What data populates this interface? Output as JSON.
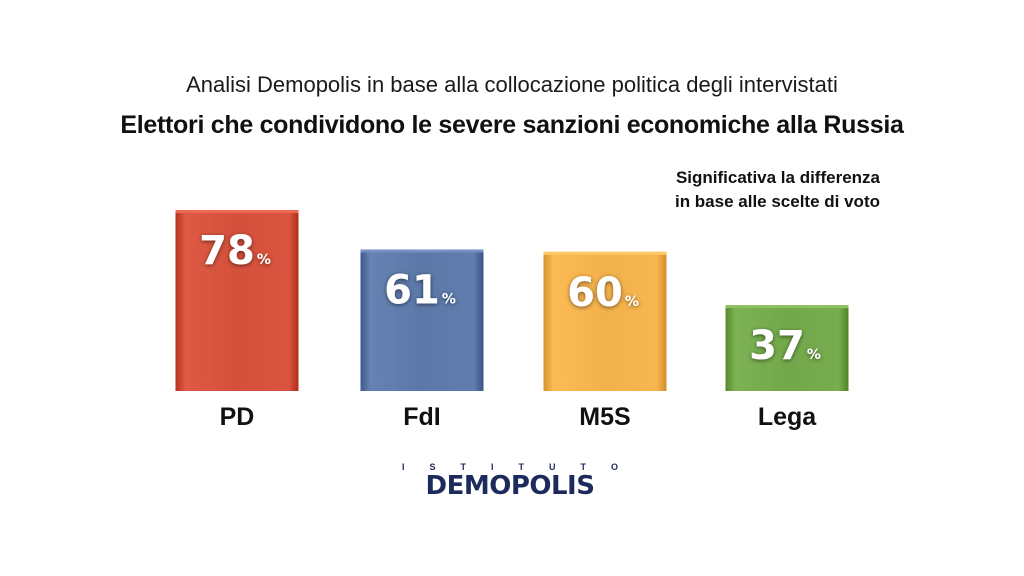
{
  "header": {
    "subtitle": "Analisi Demopolis in base alla collocazione politica degli intervistati",
    "title": "Elettori che condividono le severe sanzioni economiche alla Russia"
  },
  "note": {
    "line1": "Significativa la differenza",
    "line2": "in base alle scelte di voto"
  },
  "chart_data": {
    "type": "bar",
    "categories": [
      "PD",
      "FdI",
      "M5S",
      "Lega"
    ],
    "values": [
      78,
      61,
      60,
      37
    ],
    "unit": "%",
    "colors": [
      "#d4503a",
      "#5b78a8",
      "#f2b14a",
      "#72a84a"
    ],
    "title": "Elettori che condividono le severe sanzioni economiche alla Russia",
    "subtitle": "Analisi Demopolis in base alla collocazione politica degli intervistati",
    "legend": "none",
    "grid": false,
    "data_labels": true
  },
  "logo": {
    "top_letters": [
      "I",
      "S",
      "T",
      "I",
      "T",
      "U",
      "T",
      "O"
    ],
    "name": "DEMOPOLIS"
  }
}
